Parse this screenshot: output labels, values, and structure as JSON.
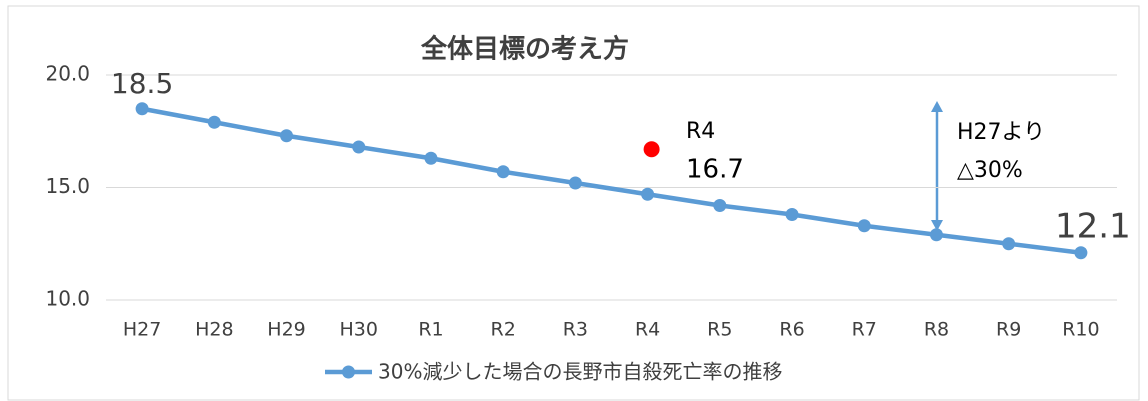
{
  "chart_data": {
    "type": "line",
    "title": "全体目標の考え方",
    "categories": [
      "H27",
      "H28",
      "H29",
      "H30",
      "R1",
      "R2",
      "R3",
      "R4",
      "R5",
      "R6",
      "R7",
      "R8",
      "R9",
      "R10"
    ],
    "series": [
      {
        "name": "30%減少した場合の長野市自殺死亡率の推移",
        "color": "#5b9bd5",
        "values": [
          18.5,
          17.9,
          17.3,
          16.8,
          16.3,
          15.7,
          15.2,
          14.7,
          14.2,
          13.8,
          13.3,
          12.9,
          12.5,
          12.1
        ],
        "value_labels": [
          "18.5",
          null,
          null,
          null,
          null,
          null,
          null,
          null,
          null,
          null,
          null,
          null,
          null,
          "12.1"
        ]
      }
    ],
    "highlight": {
      "category": "R4",
      "value": 16.7,
      "color": "#ff0000"
    },
    "annotations": [
      "H27より",
      "△30%"
    ],
    "ylim": [
      10,
      20
    ],
    "yticks": [
      {
        "value": 10,
        "label": "10.0"
      },
      {
        "value": 15,
        "label": "15.0"
      },
      {
        "value": 20,
        "label": "20.0"
      }
    ],
    "grid": true
  }
}
